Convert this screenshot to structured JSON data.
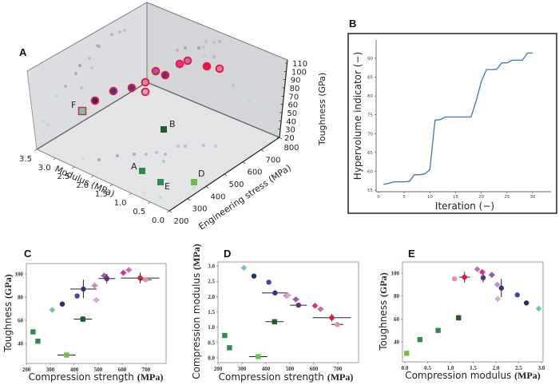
{
  "panels": {
    "A": "A",
    "B": "B",
    "C": "C",
    "D": "D",
    "E": "E"
  },
  "chart_data": [
    {
      "id": "A",
      "type": "scatter",
      "title": "",
      "axes3d": {
        "x": {
          "label": "Modulus (MPa)",
          "ticks": [
            "0.0",
            "0.5",
            "1.0",
            "1.5",
            "2.0",
            "2.5",
            "3.0",
            "3.5"
          ],
          "range": [
            0,
            3.5
          ]
        },
        "y": {
          "label": "Engineering stress (MPa)",
          "ticks": [
            "200",
            "300",
            "400",
            "500",
            "600",
            "700",
            "800"
          ],
          "range": [
            200,
            800
          ]
        },
        "z": {
          "label": "Toughness (GPa)",
          "ticks": [
            "20",
            "30",
            "40",
            "50",
            "60",
            "70",
            "80",
            "90",
            "100",
            "110"
          ],
          "range": [
            20,
            110
          ]
        }
      },
      "point_labels": [
        {
          "label": "A",
          "color": "#2e8b4e"
        },
        {
          "label": "B",
          "color": "#1e5e2e"
        },
        {
          "label": "D",
          "color": "#6cc04a"
        },
        {
          "label": "E",
          "color": "#2f8a55"
        },
        {
          "label": "F",
          "color": "#74c6a8"
        }
      ],
      "pareto_points": [
        {
          "color": "#2e2a6e"
        },
        {
          "color": "#3c3a8e"
        },
        {
          "color": "#4b3b8a"
        },
        {
          "color": "#c98ac0"
        },
        {
          "color": "#d9a0cc"
        },
        {
          "color": "#9a5aa5"
        },
        {
          "color": "#6a2a7e"
        },
        {
          "color": "#ff2a8a"
        },
        {
          "color": "#b070b8"
        },
        {
          "color": "#e8193c"
        },
        {
          "color": "#e07aa8"
        }
      ]
    },
    {
      "id": "B",
      "type": "line",
      "title": "",
      "xlabel": "Iteration (−)",
      "ylabel": "Hypervolume indicator (−)",
      "xlim": [
        0,
        32
      ],
      "ylim": [
        55,
        95
      ],
      "xticks": [
        0,
        5,
        10,
        15,
        20,
        25,
        30
      ],
      "yticks": [
        55,
        60,
        65,
        70,
        75,
        80,
        85,
        90
      ],
      "x": [
        1,
        2,
        3,
        4,
        5,
        6,
        7,
        8,
        9,
        10,
        11,
        12,
        13,
        14,
        15,
        16,
        17,
        18,
        19,
        20,
        21,
        22,
        23,
        24,
        25,
        26,
        27,
        28,
        29,
        30
      ],
      "series": [
        {
          "name": "hypervolume",
          "color": "#3a78b0",
          "values": [
            56.5,
            56.8,
            57.2,
            57.2,
            57.2,
            57.3,
            59.1,
            59.1,
            59.3,
            60.4,
            73.6,
            73.7,
            74.4,
            74.4,
            74.4,
            74.4,
            74.4,
            74.4,
            78.6,
            83.8,
            87.0,
            87.0,
            87.1,
            88.8,
            88.8,
            89.5,
            89.5,
            89.5,
            91.4,
            91.4
          ]
        }
      ]
    },
    {
      "id": "C",
      "type": "scatter",
      "xlabel": "Compression strength",
      "xlabel_unit": "(MPa)",
      "ylabel": "Toughness",
      "ylabel_unit": "(GPa)",
      "xlim": [
        200,
        760
      ],
      "ylim": [
        25,
        110
      ],
      "xticks": [
        200,
        300,
        400,
        500,
        600,
        700
      ],
      "yticks": [
        40,
        60,
        80,
        100
      ],
      "x_key": "strength",
      "y_key": "toughness"
    },
    {
      "id": "D",
      "type": "scatter",
      "xlabel": "Compression strength",
      "xlabel_unit": "(MPa)",
      "ylabel": "Compression modulus",
      "ylabel_unit": "(MPa)",
      "xlim": [
        200,
        760
      ],
      "ylim": [
        -0.1,
        3.1
      ],
      "xticks": [
        200,
        300,
        400,
        500,
        600,
        700
      ],
      "yticks": [
        "0.0",
        "0.5",
        "1.0",
        "1.5",
        "2.0",
        "2.5",
        "3.0"
      ],
      "x_key": "strength",
      "y_key": "modulus"
    },
    {
      "id": "E",
      "type": "scatter",
      "xlabel": "Compression modulus",
      "xlabel_unit": "(MPa)",
      "ylabel": "Toughness",
      "ylabel_unit": "(GPa)",
      "xlim": [
        -0.05,
        3.1
      ],
      "ylim": [
        25,
        110
      ],
      "xticks": [
        "0.0",
        "0.5",
        "1.0",
        "1.5",
        "2.0",
        "2.5",
        "3.0"
      ],
      "yticks": [
        40,
        60,
        80,
        100
      ],
      "x_key": "modulus",
      "y_key": "toughness"
    }
  ],
  "materials": [
    {
      "marker": "square",
      "color": "#6cc04a",
      "strength": 368,
      "modulus": 0.04,
      "toughness": 30,
      "xerr_s": 38,
      "yerr_t": 2,
      "xerr_m": 0,
      "yerr_m": 0
    },
    {
      "marker": "square",
      "color": "#2e8b4e",
      "strength": 228,
      "modulus": 0.73,
      "toughness": 50,
      "xerr_s": 0,
      "yerr_t": 0,
      "xerr_m": 0,
      "yerr_m": 0
    },
    {
      "marker": "square",
      "color": "#2f8a55",
      "strength": 248,
      "modulus": 0.33,
      "toughness": 42,
      "xerr_s": 0,
      "yerr_t": 0,
      "xerr_m": 0,
      "yerr_m": 0
    },
    {
      "marker": "square",
      "color": "#1e5e2e",
      "strength": 436,
      "modulus": 1.18,
      "toughness": 61,
      "xerr_s": 38,
      "yerr_t": 2.5,
      "xerr_m": 0,
      "yerr_m": 0
    },
    {
      "marker": "diamond",
      "color": "#74c6b0",
      "strength": 308,
      "modulus": 2.94,
      "toughness": 69,
      "xerr_s": 10,
      "yerr_t": 0,
      "xerr_m": 0,
      "yerr_m": 0
    },
    {
      "marker": "circle",
      "color": "#2a2a6e",
      "strength": 350,
      "modulus": 2.67,
      "toughness": 74,
      "xerr_s": 0,
      "yerr_t": 0,
      "xerr_m": 0,
      "yerr_m": 0
    },
    {
      "marker": "circle",
      "color": "#3e4a9a",
      "strength": 412,
      "modulus": 2.47,
      "toughness": 81,
      "xerr_s": 10,
      "yerr_t": 0,
      "xerr_m": 0,
      "yerr_m": 0
    },
    {
      "marker": "circle",
      "color": "#3d2f80",
      "strength": 438,
      "modulus": 2.12,
      "toughness": 87,
      "xerr_s": 55,
      "yerr_t": 8,
      "xerr_m": 0,
      "yerr_m": 0.08
    },
    {
      "marker": "diamond",
      "color": "#d088bc",
      "strength": 485,
      "modulus": 2.03,
      "toughness": 90,
      "xerr_s": 13,
      "yerr_t": 1,
      "xerr_m": 0,
      "yerr_m": 0.05
    },
    {
      "marker": "diamond",
      "color": "#d9a6d0",
      "strength": 492,
      "modulus": 2.04,
      "toughness": 77.5,
      "xerr_s": 13,
      "yerr_t": 2,
      "xerr_m": 0,
      "yerr_m": 0
    },
    {
      "marker": "diamond",
      "color": "#9a5aa8",
      "strength": 525,
      "modulus": 1.91,
      "toughness": 98.5,
      "xerr_s": 14,
      "yerr_t": 2.5,
      "xerr_m": 0.07,
      "yerr_m": 0.05
    },
    {
      "marker": "circle",
      "color": "#6e2a80",
      "strength": 536,
      "modulus": 1.72,
      "toughness": 96,
      "xerr_s": 35,
      "yerr_t": 4,
      "xerr_m": 0,
      "yerr_m": 0
    },
    {
      "marker": "diamond",
      "color": "#e0288e",
      "strength": 605,
      "modulus": 1.7,
      "toughness": 101,
      "xerr_s": 8,
      "yerr_t": 1,
      "xerr_m": 0,
      "yerr_m": 0
    },
    {
      "marker": "diamond",
      "color": "#c070b0",
      "strength": 628,
      "modulus": 1.59,
      "toughness": 103.5,
      "xerr_s": 13,
      "yerr_t": 1,
      "xerr_m": 0,
      "yerr_m": 0
    },
    {
      "marker": "circle",
      "color": "#e0193c",
      "strength": 675,
      "modulus": 1.31,
      "toughness": 96.5,
      "xerr_s": 80,
      "yerr_t": 4.5,
      "xerr_m": 0.12,
      "yerr_m": 0.12
    },
    {
      "marker": "circle",
      "color": "#e68cb0",
      "strength": 698,
      "modulus": 1.09,
      "toughness": 95,
      "xerr_s": 25,
      "yerr_t": 0,
      "xerr_m": 0,
      "yerr_m": 0
    }
  ]
}
